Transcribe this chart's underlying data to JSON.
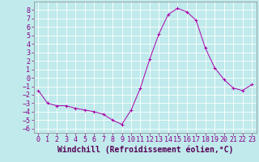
{
  "title": "",
  "xlabel": "Windchill (Refroidissement éolien,°C)",
  "ylabel": "",
  "bg_color": "#c0eaec",
  "line_color": "#aa00aa",
  "marker": "+",
  "marker_color": "#aa00aa",
  "xlim": [
    -0.5,
    23.5
  ],
  "ylim": [
    -6.5,
    9.0
  ],
  "xticks": [
    0,
    1,
    2,
    3,
    4,
    5,
    6,
    7,
    8,
    9,
    10,
    11,
    12,
    13,
    14,
    15,
    16,
    17,
    18,
    19,
    20,
    21,
    22,
    23
  ],
  "yticks": [
    -6,
    -5,
    -4,
    -3,
    -2,
    -1,
    0,
    1,
    2,
    3,
    4,
    5,
    6,
    7,
    8
  ],
  "grid_color": "#aadddd",
  "hours": [
    0,
    1,
    2,
    3,
    4,
    5,
    6,
    7,
    8,
    9,
    10,
    11,
    12,
    13,
    14,
    15,
    16,
    17,
    18,
    19,
    20,
    21,
    22,
    23
  ],
  "values": [
    -1.5,
    -3.0,
    -3.3,
    -3.3,
    -3.6,
    -3.8,
    -4.0,
    -4.3,
    -5.0,
    -5.5,
    -3.8,
    -1.2,
    2.2,
    5.2,
    7.5,
    8.2,
    7.8,
    6.8,
    3.5,
    1.2,
    -0.2,
    -1.2,
    -1.5,
    -0.8
  ],
  "xlabel_fontsize": 7,
  "tick_fontsize": 6
}
